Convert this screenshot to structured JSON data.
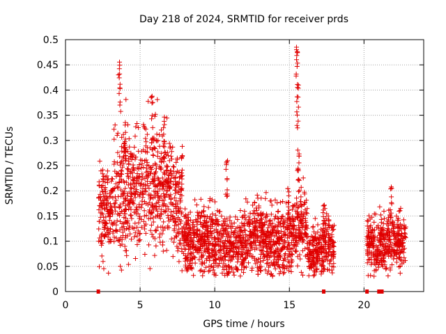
{
  "chart_data": {
    "type": "scatter",
    "title": "Day 218 of 2024, SRMTID for receiver prds",
    "xlabel": "GPS time / hours",
    "ylabel": "SRMTID / TECUs",
    "xlim": [
      0,
      24.0
    ],
    "ylim": [
      0,
      0.5
    ],
    "x_ticks": [
      0,
      5,
      10,
      15,
      20
    ],
    "y_ticks": [
      0,
      0.05,
      0.1,
      0.15,
      0.2,
      0.25,
      0.3,
      0.35,
      0.4,
      0.45,
      0.5
    ],
    "y_tick_labels": [
      "0",
      "0.05",
      "0.1",
      "0.15",
      "0.2",
      "0.25",
      "0.3",
      "0.35",
      "0.4",
      "0.45",
      "0.5"
    ],
    "grid": true,
    "marker": "+",
    "series_color": "#e00000",
    "gap_markers_x": [
      2.2,
      17.3,
      20.2,
      21.0,
      21.2
    ],
    "segments": [
      {
        "start": 2.2,
        "end": 3.2,
        "base_level": 0.16,
        "spread": 0.1
      },
      {
        "start": 3.2,
        "end": 4.2,
        "base_level": 0.19,
        "spread": 0.15
      },
      {
        "start": 4.2,
        "end": 5.2,
        "base_level": 0.2,
        "spread": 0.12
      },
      {
        "start": 5.2,
        "end": 6.2,
        "base_level": 0.22,
        "spread": 0.15
      },
      {
        "start": 6.2,
        "end": 7.2,
        "base_level": 0.2,
        "spread": 0.13
      },
      {
        "start": 7.2,
        "end": 7.8,
        "base_level": 0.18,
        "spread": 0.12
      },
      {
        "start": 7.8,
        "end": 9.0,
        "base_level": 0.1,
        "spread": 0.07
      },
      {
        "start": 9.0,
        "end": 10.5,
        "base_level": 0.1,
        "spread": 0.08
      },
      {
        "start": 10.5,
        "end": 12.0,
        "base_level": 0.09,
        "spread": 0.07
      },
      {
        "start": 12.0,
        "end": 13.5,
        "base_level": 0.11,
        "spread": 0.08
      },
      {
        "start": 13.5,
        "end": 15.2,
        "base_level": 0.1,
        "spread": 0.08
      },
      {
        "start": 15.2,
        "end": 16.2,
        "base_level": 0.13,
        "spread": 0.08
      },
      {
        "start": 16.2,
        "end": 17.3,
        "base_level": 0.08,
        "spread": 0.05
      },
      {
        "start": 17.3,
        "end": 18.0,
        "base_level": 0.1,
        "spread": 0.07
      },
      {
        "start": 20.2,
        "end": 21.0,
        "base_level": 0.09,
        "spread": 0.06
      },
      {
        "start": 21.0,
        "end": 22.0,
        "base_level": 0.1,
        "spread": 0.06
      },
      {
        "start": 22.0,
        "end": 22.8,
        "base_level": 0.1,
        "spread": 0.06
      }
    ],
    "peaks": [
      {
        "x": 3.6,
        "y": 0.46
      },
      {
        "x": 4.0,
        "y": 0.35
      },
      {
        "x": 5.8,
        "y": 0.39
      },
      {
        "x": 6.6,
        "y": 0.35
      },
      {
        "x": 7.8,
        "y": 0.29
      },
      {
        "x": 10.8,
        "y": 0.26
      },
      {
        "x": 14.9,
        "y": 0.22
      },
      {
        "x": 15.5,
        "y": 0.5
      },
      {
        "x": 15.55,
        "y": 0.41
      },
      {
        "x": 15.6,
        "y": 0.3
      },
      {
        "x": 17.3,
        "y": 0.19
      },
      {
        "x": 21.8,
        "y": 0.23
      }
    ]
  }
}
